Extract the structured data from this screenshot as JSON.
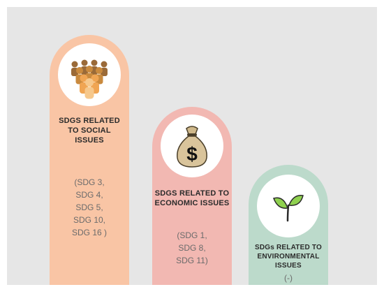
{
  "pillars": [
    {
      "icon": "people-group-icon",
      "title": "SDGS RELATED\nTO SOCIAL\nISSUES",
      "sdgs": "(SDG 3,\nSDG 4,\nSDG 5,\nSDG 10,\nSDG 16 )",
      "color": "#f9c5a5"
    },
    {
      "icon": "money-bag-icon",
      "title": "SDGS RELATED TO\nECONOMIC ISSUES",
      "sdgs": "(SDG 1,\nSDG 8,\nSDG 11)",
      "color": "#f2b8b2"
    },
    {
      "icon": "sprout-icon",
      "title": "SDGs RELATED TO\nENVIRONMENTAL\nISSUES",
      "sdgs": "(-)",
      "color": "#bcdacb"
    }
  ]
}
